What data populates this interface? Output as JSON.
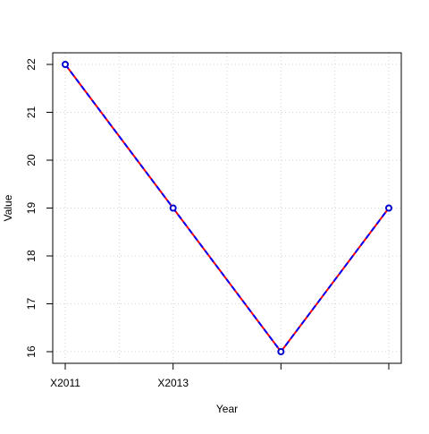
{
  "chart_data": {
    "type": "line",
    "x": [
      "X2011",
      "X2013",
      "",
      ""
    ],
    "x_tick_labels": [
      "X2011",
      "X2013"
    ],
    "series": [
      {
        "values": [
          22,
          19,
          16,
          19
        ]
      }
    ],
    "xlabel": "Year",
    "ylabel": "Value",
    "ylim": [
      16,
      22
    ],
    "y_ticks": [
      16,
      17,
      18,
      19,
      20,
      21,
      22
    ],
    "grid": true,
    "colors": {
      "line_primary": "#ff0000",
      "line_dash": "#0000ff",
      "marker": "#0000cc",
      "grid": "#d3d3d3",
      "axis": "#000000"
    }
  }
}
